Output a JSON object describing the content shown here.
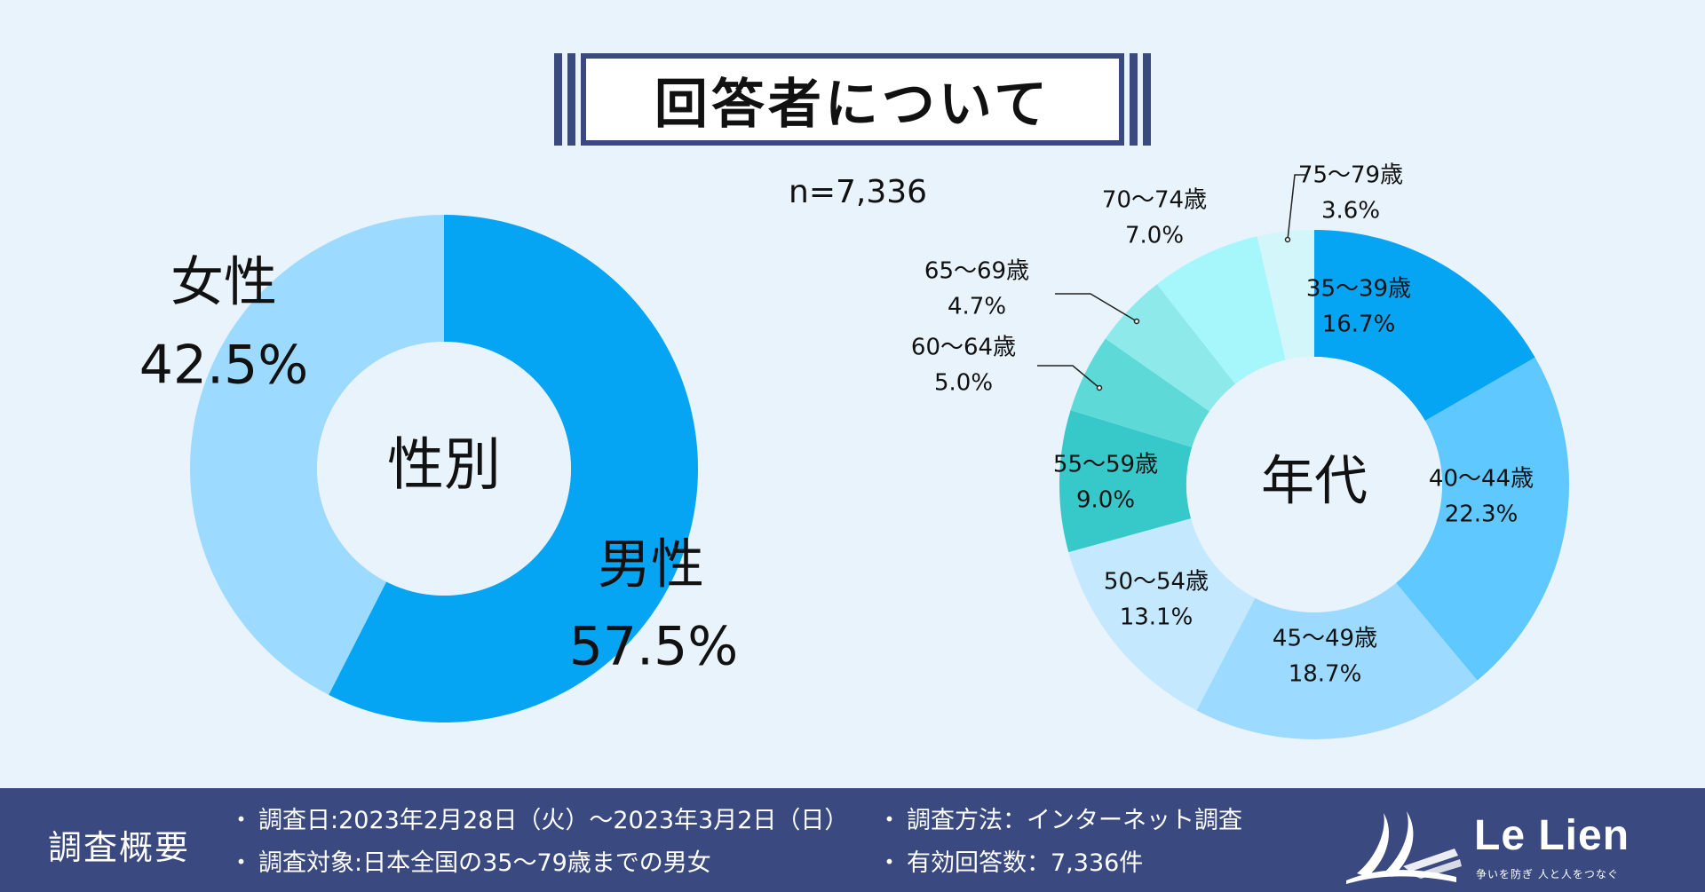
{
  "title": "回答者について",
  "sample_size": "n=7,336",
  "chart_data": [
    {
      "type": "pie",
      "title": "",
      "center_label": "性別",
      "categories": [
        "男性",
        "女性"
      ],
      "values": [
        57.5,
        42.5
      ],
      "value_labels": [
        "57.5%",
        "42.5%"
      ],
      "colors": [
        "#05a5f4",
        "#9ddaff"
      ]
    },
    {
      "type": "pie",
      "title": "",
      "center_label": "年代",
      "categories": [
        "35～39歳",
        "40～44歳",
        "45～49歳",
        "50～54歳",
        "55～59歳",
        "60～64歳",
        "65～69歳",
        "70～74歳",
        "75～79歳"
      ],
      "values": [
        16.7,
        22.3,
        18.7,
        13.1,
        9.0,
        5.0,
        4.7,
        7.0,
        3.6
      ],
      "value_labels": [
        "16.7%",
        "22.3%",
        "18.7%",
        "13.1%",
        "9.0%",
        "5.0%",
        "4.7%",
        "7.0%",
        "3.6%"
      ],
      "colors": [
        "#05a5f4",
        "#5ec8ff",
        "#9ddaff",
        "#c4e8fd",
        "#37c9c9",
        "#5ddad8",
        "#8ee9ea",
        "#a6f7fb",
        "#d3f6fb"
      ]
    }
  ],
  "footer": {
    "heading": "調査概要",
    "bullet": "・",
    "items": [
      "調査日:2023年2月28日（火）～2023年3月2日（日）",
      "調査対象:日本全国の35～79歳までの男女",
      "調査方法：インターネット調査",
      "有効回答数：7,336件"
    ]
  },
  "logo": {
    "name": "Le Lien",
    "tagline": "争いを防ぎ 人と人をつなぐ"
  }
}
